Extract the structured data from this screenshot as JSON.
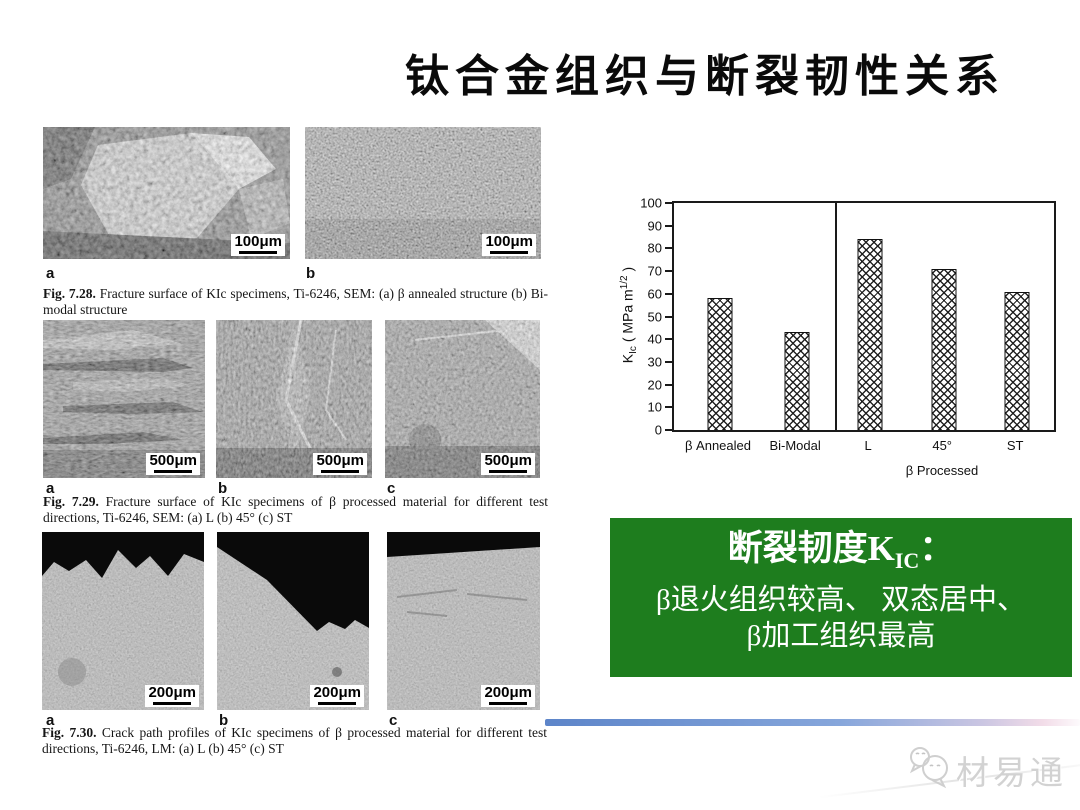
{
  "title": "钛合金组织与断裂韧性关系",
  "figures": [
    {
      "caption_label": "Fig. 7.28.",
      "caption_text": "Fracture surface of KIc specimens, Ti-6246, SEM:  (a) β annealed structure  (b) Bi-modal structure",
      "panels": [
        {
          "label": "a",
          "scale": "100μm"
        },
        {
          "label": "b",
          "scale": "100μm"
        }
      ]
    },
    {
      "caption_label": "Fig. 7.29.",
      "caption_text": "Fracture surface of KIc specimens of β processed material for different test directions, Ti-6246, SEM:  (a) L  (b) 45°  (c) ST",
      "panels": [
        {
          "label": "a",
          "scale": "500μm"
        },
        {
          "label": "b",
          "scale": "500μm"
        },
        {
          "label": "c",
          "scale": "500μm"
        }
      ]
    },
    {
      "caption_label": "Fig. 7.30.",
      "caption_text": "Crack path profiles of KIc specimens of β processed material for different test directions, Ti-6246, LM:  (a) L  (b) 45°  (c) ST",
      "panels": [
        {
          "label": "a",
          "scale": "200μm"
        },
        {
          "label": "b",
          "scale": "200μm"
        },
        {
          "label": "c",
          "scale": "200μm"
        }
      ]
    }
  ],
  "chart_data": {
    "type": "bar",
    "categories": [
      "β Annealed",
      "Bi-Modal",
      "L",
      "45°",
      "ST"
    ],
    "values": [
      58,
      43,
      84,
      71,
      61
    ],
    "ylabel": "KIc ( MPa m1/2 )",
    "ylabel_parts": {
      "base": "K",
      "sub": "Ic",
      "mid": " ( MPa m",
      "sup": "1/2",
      "end": " )"
    },
    "group_label": "β Processed",
    "ylim": [
      0,
      100
    ],
    "ytick_step": 10,
    "divider_after_index": 1,
    "bar_pattern": "crosshatch",
    "legend": "none",
    "grid": "off"
  },
  "conclusion": {
    "line1_prefix": "断裂韧度K",
    "line1_sub": "IC",
    "line1_suffix": "：",
    "line2": "β退火组织较高、 双态居中、",
    "line3": "β加工组织最高"
  },
  "watermark": {
    "brand": "材易通"
  },
  "colors": {
    "conclusion_bg": "#1e7d1e",
    "conclusion_text": "#ffffff",
    "accent_bar_left": "#5d85c9",
    "accent_bar_right": "#f2dce8"
  }
}
